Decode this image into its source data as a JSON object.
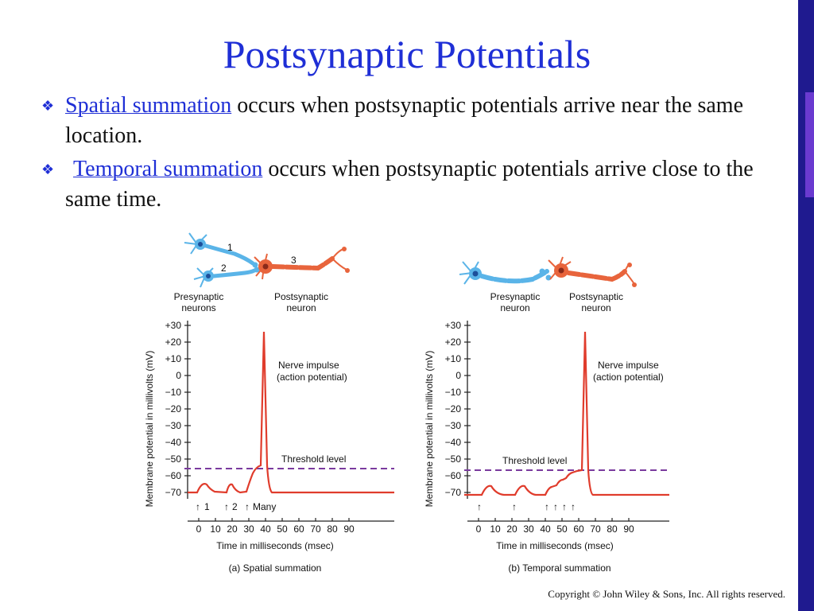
{
  "slide": {
    "title": "Postsynaptic Potentials",
    "bullets": [
      {
        "term": "Spatial summation",
        "text": " occurs when postsynaptic potentials arrive near the same location."
      },
      {
        "term": "Temporal summation",
        "text": " occurs when postsynaptic potentials arrive close to the same time."
      }
    ],
    "copyright": "Copyright © John Wiley & Sons, Inc. All rights reserved.",
    "colors": {
      "title": "#1f2fd6",
      "accent_bar": "#1f1a8f",
      "trace": "#e03c2c",
      "threshold": "#7a3a9e",
      "presynaptic": "#5ab4e8",
      "postsynaptic": "#e8643c"
    }
  },
  "figure": {
    "panel_a": {
      "neuron_labels": {
        "n1": "1",
        "n2": "2",
        "n3": "3"
      },
      "pre_label_1": "Presynaptic",
      "pre_label_2": "neurons",
      "post_label_1": "Postsynaptic",
      "post_label_2": "neuron",
      "ylabel": "Membrane potential in millivolts (mV)",
      "xlabel": "Time in milliseconds (msec)",
      "yticks": [
        "+30",
        "+20",
        "+10",
        "0",
        "−10",
        "−20",
        "−30",
        "−40",
        "−50",
        "−60",
        "−70"
      ],
      "xticks": [
        "0",
        "10",
        "20",
        "30",
        "40",
        "50",
        "60",
        "70",
        "80",
        "90"
      ],
      "annotation_1": "Nerve impulse",
      "annotation_2": "(action potential)",
      "threshold_label": "Threshold level",
      "arrow_labels": [
        "1",
        "2",
        "Many"
      ],
      "caption": "(a) Spatial summation"
    },
    "panel_b": {
      "pre_label_1": "Presynaptic",
      "pre_label_2": "neuron",
      "post_label_1": "Postsynaptic",
      "post_label_2": "neuron",
      "ylabel": "Membrane potential in millivolts (mV)",
      "xlabel": "Time in milliseconds (msec)",
      "yticks": [
        "+30",
        "+20",
        "+10",
        "0",
        "−10",
        "−20",
        "−30",
        "−40",
        "−50",
        "−60",
        "−70"
      ],
      "xticks": [
        "0",
        "10",
        "20",
        "30",
        "40",
        "50",
        "60",
        "70",
        "80",
        "90"
      ],
      "annotation_1": "Nerve impulse",
      "annotation_2": "(action potential)",
      "threshold_label": "Threshold level",
      "caption": "(b) Temporal summation"
    }
  }
}
